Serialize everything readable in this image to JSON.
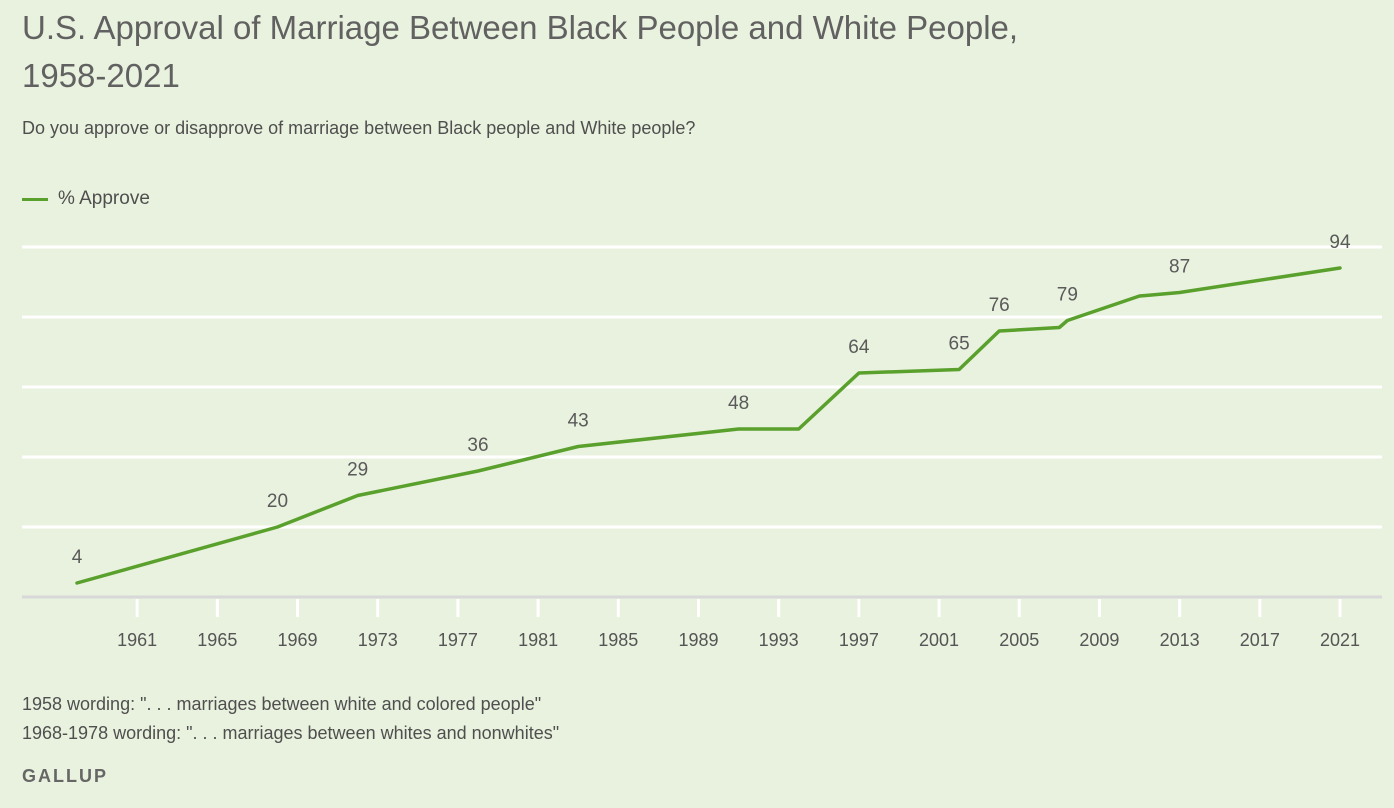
{
  "title": "U.S. Approval of Marriage Between Black People and White People, 1958-2021",
  "subtitle": "Do you approve or disapprove of marriage between Black people and White people?",
  "legend": {
    "label": "% Approve",
    "color": "#5aa02c"
  },
  "notes": [
    "1958 wording: \". . . marriages between white and colored people\"",
    "1968-1978 wording: \". . . marriages between whites and nonwhites\""
  ],
  "brand": "GALLUP",
  "chart_data": {
    "type": "line",
    "title": "U.S. Approval of Marriage Between Black People and White People, 1958-2021",
    "xlabel": "",
    "ylabel": "",
    "x_ticks": [
      "1961",
      "1965",
      "1969",
      "1973",
      "1977",
      "1981",
      "1985",
      "1989",
      "1993",
      "1997",
      "2001",
      "2005",
      "2009",
      "2013",
      "2017",
      "2021"
    ],
    "xlim": [
      1958,
      2021
    ],
    "ylim": [
      0,
      100
    ],
    "grid": true,
    "legend_position": "top-left",
    "series": [
      {
        "name": "% Approve",
        "color": "#5aa02c",
        "points": [
          {
            "x": 1958,
            "y": 4,
            "label": "4"
          },
          {
            "x": 1968,
            "y": 20,
            "label": "20"
          },
          {
            "x": 1972,
            "y": 29,
            "label": "29"
          },
          {
            "x": 1978,
            "y": 36,
            "label": "36"
          },
          {
            "x": 1983,
            "y": 43,
            "label": "43"
          },
          {
            "x": 1991,
            "y": 48,
            "label": "48"
          },
          {
            "x": 1994,
            "y": 48,
            "label": ""
          },
          {
            "x": 1997,
            "y": 64,
            "label": "64"
          },
          {
            "x": 2002,
            "y": 65,
            "label": "65"
          },
          {
            "x": 2004,
            "y": 76,
            "label": "76"
          },
          {
            "x": 2007,
            "y": 77,
            "label": ""
          },
          {
            "x": 2007.4,
            "y": 79,
            "label": "79"
          },
          {
            "x": 2011,
            "y": 86,
            "label": ""
          },
          {
            "x": 2013,
            "y": 87,
            "label": "87"
          },
          {
            "x": 2021,
            "y": 94,
            "label": "94"
          }
        ]
      }
    ]
  }
}
